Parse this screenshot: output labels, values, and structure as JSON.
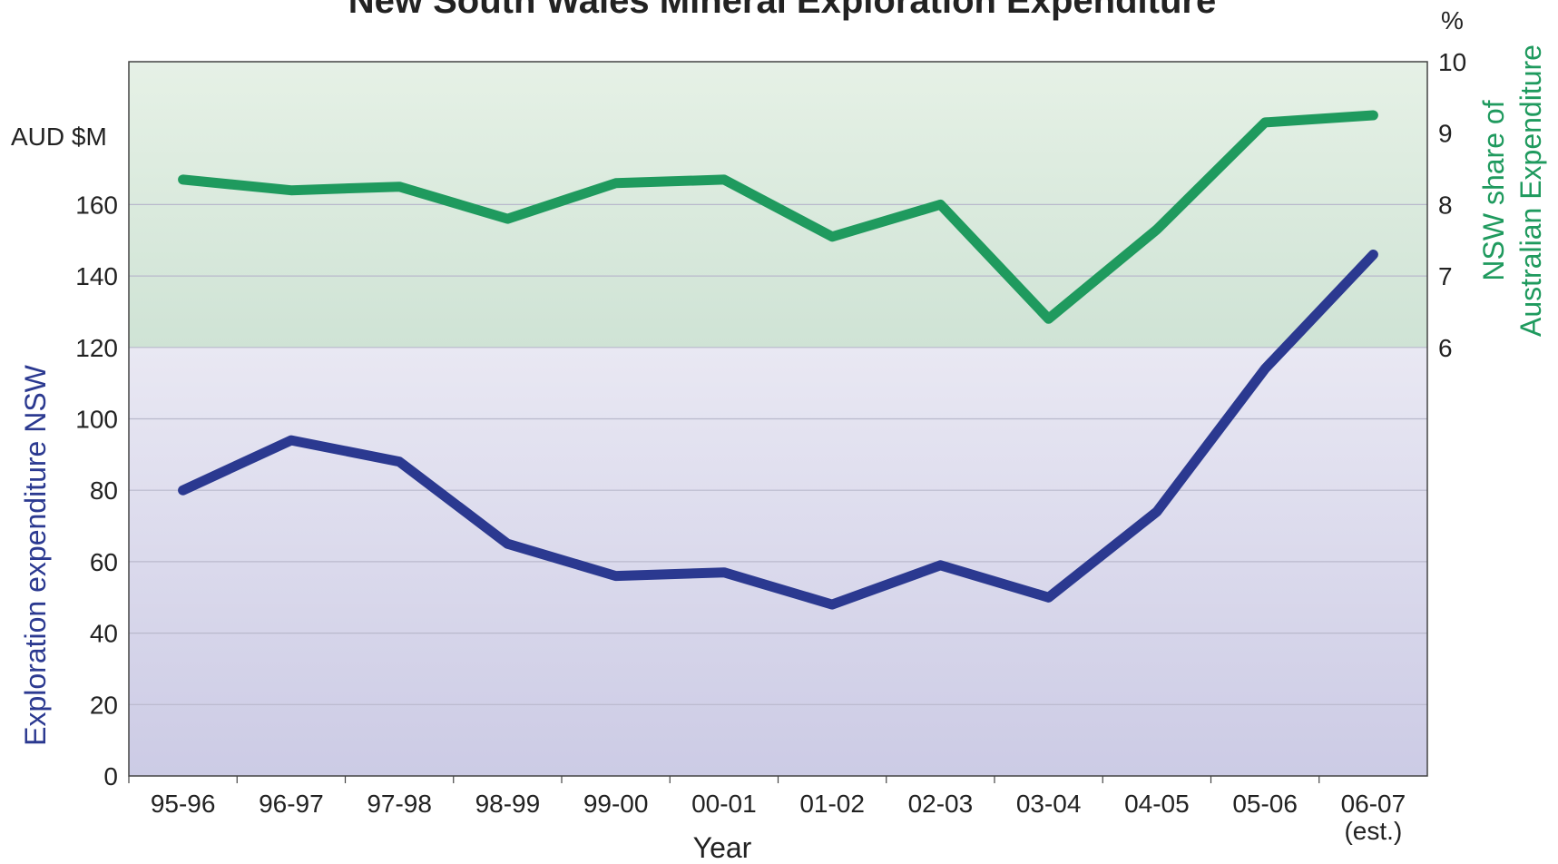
{
  "chart_data": {
    "type": "line",
    "title": "New South Wales Mineral Exploration Expenditure",
    "xlabel": "Year",
    "categories": [
      "95-96",
      "96-97",
      "97-98",
      "98-99",
      "99-00",
      "00-01",
      "01-02",
      "02-03",
      "03-04",
      "04-05",
      "05-06",
      "06-07"
    ],
    "category_sublabels": [
      "",
      "",
      "",
      "",
      "",
      "",
      "",
      "",
      "",
      "",
      "",
      "(est.)"
    ],
    "y_left": {
      "label": "Exploration expenditure NSW",
      "unit": "AUD $M",
      "range": [
        0,
        200
      ],
      "ticks": [
        0,
        20,
        40,
        60,
        80,
        100,
        120,
        140,
        160
      ]
    },
    "y_right": {
      "label_line1": "NSW share of",
      "label_line2": "Australian Expenditure",
      "unit": "%",
      "range": [
        0,
        10
      ],
      "ticks": [
        6,
        7,
        8,
        9,
        10
      ]
    },
    "series": [
      {
        "axis": "left",
        "color": "#2b3990",
        "values": [
          80,
          94,
          88,
          65,
          56,
          57,
          48,
          59,
          50,
          74,
          114,
          146
        ]
      },
      {
        "axis": "right",
        "color": "#1f9a5e",
        "values": [
          8.35,
          8.2,
          8.25,
          7.8,
          8.3,
          8.35,
          7.55,
          8.0,
          6.4,
          7.65,
          9.15,
          9.25
        ]
      }
    ],
    "grid": true,
    "legend": "none",
    "colors": {
      "band_top": "#e6f1e6",
      "band_bottom": "#cfe3d5",
      "plot_top": "#e9e8f3",
      "plot_bottom": "#cccbe5",
      "left_axis_title": "#2b3990",
      "right_axis_title": "#1f9a5e"
    }
  }
}
